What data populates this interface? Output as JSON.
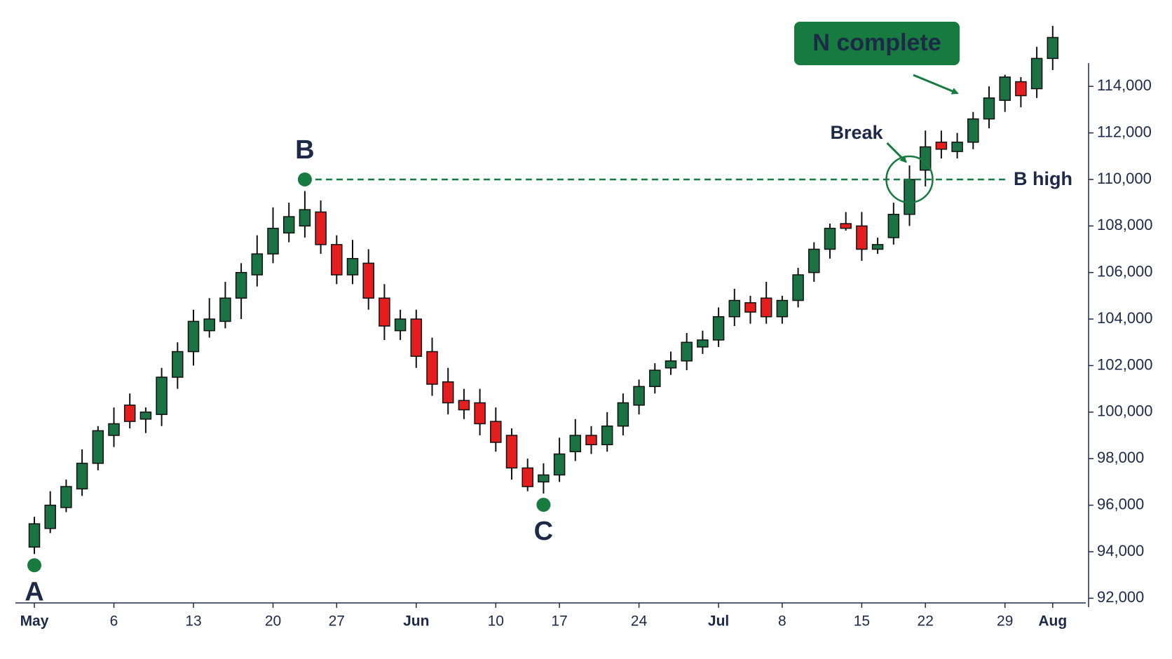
{
  "chart_data": {
    "type": "candlestick",
    "categories": [
      "May",
      null,
      null,
      null,
      null,
      "6",
      null,
      null,
      null,
      null,
      "13",
      null,
      null,
      null,
      null,
      "20",
      null,
      null,
      null,
      "27",
      null,
      null,
      null,
      null,
      "Jun",
      null,
      null,
      null,
      null,
      "10",
      null,
      null,
      null,
      "17",
      null,
      null,
      null,
      null,
      "24",
      null,
      null,
      null,
      null,
      "Jul",
      null,
      null,
      null,
      "8",
      null,
      null,
      null,
      null,
      "15",
      null,
      null,
      null,
      "22",
      null,
      null,
      null,
      null,
      "29",
      null,
      null,
      "Aug"
    ],
    "open": [
      94200,
      95000,
      95900,
      96700,
      97800,
      99000,
      100300,
      99700,
      99900,
      101500,
      102600,
      103500,
      103900,
      104900,
      105900,
      106800,
      107700,
      108000,
      108600,
      107200,
      105900,
      106400,
      104900,
      103500,
      104000,
      102600,
      101300,
      100500,
      100400,
      99600,
      99000,
      97600,
      97000,
      97300,
      98300,
      99000,
      98600,
      99400,
      100300,
      101100,
      101900,
      102200,
      102800,
      103100,
      104100,
      104700,
      104900,
      104100,
      104800,
      106000,
      107000,
      108100,
      108000,
      107000,
      107500,
      108500,
      110400,
      111600,
      111200,
      111600,
      112600,
      113400,
      114200,
      113900,
      115200
    ],
    "high": [
      95500,
      96600,
      97100,
      98400,
      99400,
      100200,
      100800,
      100200,
      101900,
      103000,
      104400,
      104900,
      105600,
      106400,
      107600,
      108800,
      109000,
      109500,
      109100,
      107600,
      107400,
      107000,
      105500,
      104400,
      104400,
      103200,
      101900,
      101000,
      101000,
      100200,
      99300,
      98000,
      97800,
      98900,
      99700,
      99400,
      100000,
      100800,
      101400,
      102100,
      102600,
      103400,
      103500,
      104500,
      105300,
      105000,
      105600,
      105000,
      106200,
      107300,
      108100,
      108600,
      108600,
      107500,
      109000,
      110600,
      112100,
      112100,
      112000,
      112900,
      114000,
      114500,
      114400,
      115700,
      116600
    ],
    "low": [
      93900,
      94800,
      95700,
      96400,
      97500,
      98500,
      99300,
      99100,
      99400,
      101000,
      102000,
      103200,
      103600,
      104000,
      105400,
      106400,
      107300,
      107500,
      106800,
      105500,
      105500,
      104400,
      103100,
      103100,
      101900,
      100700,
      99900,
      99700,
      99000,
      98300,
      97100,
      96600,
      96500,
      97000,
      97900,
      98200,
      98300,
      99000,
      99900,
      100800,
      101600,
      101800,
      102500,
      102800,
      103700,
      103800,
      103800,
      103800,
      104500,
      105600,
      106600,
      107800,
      106500,
      106800,
      107200,
      108000,
      109700,
      110900,
      110900,
      111300,
      112200,
      112900,
      113100,
      113500,
      114700
    ],
    "close": [
      95200,
      96000,
      96800,
      97800,
      99200,
      99500,
      99600,
      100000,
      101500,
      102600,
      103900,
      104000,
      104900,
      106000,
      106800,
      107900,
      108400,
      108700,
      107200,
      105900,
      106600,
      104900,
      103700,
      104000,
      102400,
      101200,
      100400,
      100100,
      99500,
      98700,
      97600,
      96800,
      97300,
      98200,
      99000,
      98600,
      99400,
      100400,
      101100,
      101800,
      102200,
      103000,
      103100,
      104100,
      104800,
      104300,
      104100,
      104800,
      105900,
      107000,
      107900,
      107900,
      107000,
      107200,
      108500,
      110000,
      111400,
      111300,
      111600,
      112600,
      113500,
      114400,
      113600,
      115200,
      116100
    ],
    "up_color": "#1b7344",
    "down_color": "#e41e1e",
    "annotation_color": "#177a3e",
    "ylim": [
      91800,
      115000
    ],
    "yticks": [
      {
        "value": 92000,
        "label": "92,000"
      },
      {
        "value": 94000,
        "label": "94,000"
      },
      {
        "value": 96000,
        "label": "96,000"
      },
      {
        "value": 98000,
        "label": "98,000"
      },
      {
        "value": 100000,
        "label": "100,000"
      },
      {
        "value": 102000,
        "label": "102,000"
      },
      {
        "value": 104000,
        "label": "104,000"
      },
      {
        "value": 106000,
        "label": "106,000"
      },
      {
        "value": 108000,
        "label": "108,000"
      },
      {
        "value": 110000,
        "label": "110,000"
      },
      {
        "value": 112000,
        "label": "112,000"
      },
      {
        "value": 114000,
        "label": "114,000"
      }
    ],
    "pivots": [
      "A",
      "B",
      "C"
    ],
    "b_high": {
      "label": "B high",
      "value": 110000
    },
    "break_label": "Break",
    "completion_label": "N complete"
  }
}
